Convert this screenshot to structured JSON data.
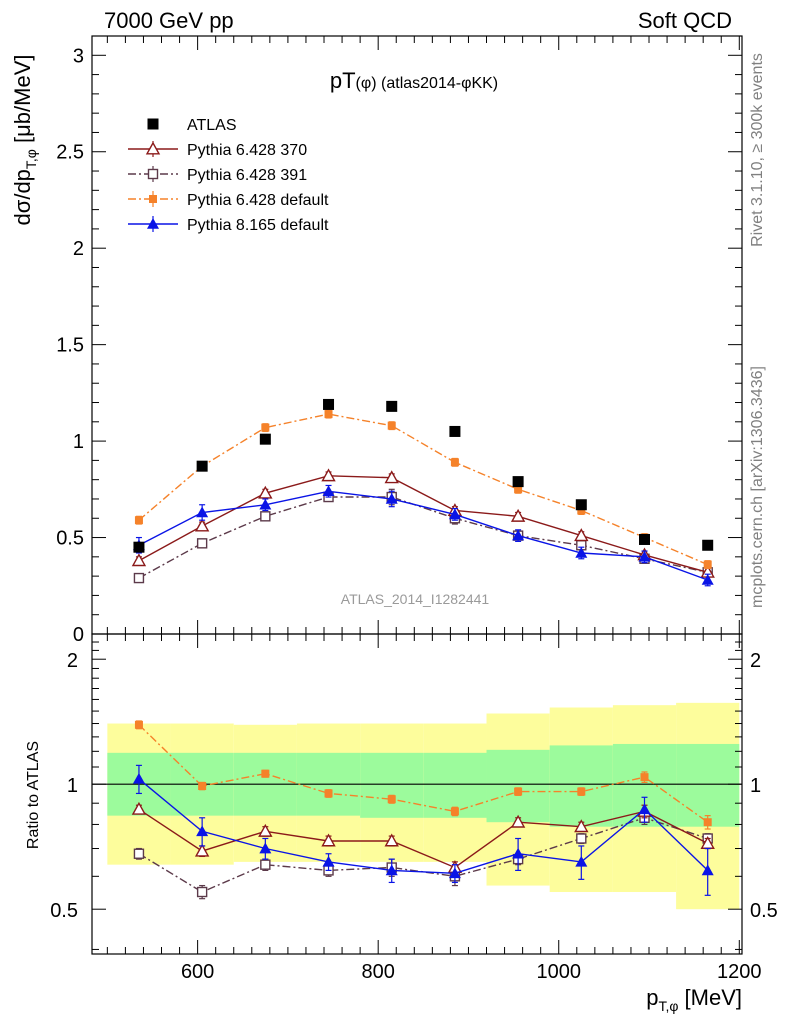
{
  "header": {
    "left": "7000 GeV pp",
    "right": "Soft QCD"
  },
  "side_labels": {
    "rivet": "Rivet 3.1.10, ≥ 300k events",
    "mcplots": "mcplots.cern.ch [arXiv:1306.3436]"
  },
  "watermark": "ATLAS_2014_I1282441",
  "colors": {
    "atlas": "#000000",
    "p370": "#8b1a1a",
    "p391": "#5c3a4a",
    "p6def": "#f5822a",
    "p8def": "#0a14e6",
    "band_yellow": "#fdfd9c",
    "band_green": "#9cfb9c"
  },
  "chart_data": [
    {
      "type": "line",
      "panel": "main",
      "title": "pT(φ) (atlas2014-φKK)",
      "title_main": "pT",
      "title_sub": "(φ) (atlas2014-φKK)",
      "ylabel": "dσ/dp_{T,φ} [μb/MeV]",
      "ylabel_main": "dσ/dp",
      "ylabel_sub": "T,φ",
      "ylabel_unit": " [μb/MeV]",
      "xlim": [
        483,
        1203
      ],
      "ylim": [
        0,
        3.1
      ],
      "yticks": [
        0,
        0.5,
        1,
        1.5,
        2,
        2.5,
        3
      ],
      "ytick_labels": [
        "0",
        "0.5",
        "1",
        "1.5",
        "2",
        "2.5",
        "3"
      ],
      "x": [
        535,
        605,
        675,
        745,
        815,
        885,
        955,
        1025,
        1095,
        1165
      ],
      "series": [
        {
          "name": "ATLAS",
          "key": "atlas",
          "marker": "square-filled",
          "line": "none",
          "values": [
            0.45,
            0.87,
            1.01,
            1.19,
            1.18,
            1.05,
            0.79,
            0.67,
            0.49,
            0.46
          ]
        },
        {
          "name": "Pythia 6.428 370",
          "key": "p370",
          "marker": "triangle-open",
          "line": "solid",
          "values": [
            0.38,
            0.56,
            0.73,
            0.82,
            0.81,
            0.64,
            0.61,
            0.51,
            0.41,
            0.32
          ],
          "errors": [
            0.02,
            0.02,
            0.02,
            0.02,
            0.02,
            0.02,
            0.02,
            0.02,
            0.02,
            0.02
          ]
        },
        {
          "name": "Pythia 6.428 391",
          "key": "p391",
          "marker": "square-open",
          "line": "dashdot",
          "values": [
            0.29,
            0.47,
            0.61,
            0.71,
            0.71,
            0.6,
            0.51,
            0.46,
            0.39,
            0.32
          ],
          "errors": [
            0.02,
            0.02,
            0.02,
            0.02,
            0.04,
            0.03,
            0.02,
            0.02,
            0.02,
            0.02
          ]
        },
        {
          "name": "Pythia 6.428 default",
          "key": "p6def",
          "marker": "square-filled-small",
          "line": "dashdot",
          "values": [
            0.59,
            0.87,
            1.07,
            1.14,
            1.08,
            0.89,
            0.75,
            0.64,
            0.5,
            0.36
          ],
          "errors": [
            0.02,
            0.02,
            0.02,
            0.02,
            0.02,
            0.02,
            0.02,
            0.02,
            0.02,
            0.02
          ]
        },
        {
          "name": "Pythia 8.165 default",
          "key": "p8def",
          "marker": "triangle-filled",
          "line": "solid",
          "values": [
            0.46,
            0.63,
            0.67,
            0.74,
            0.7,
            0.62,
            0.51,
            0.42,
            0.4,
            0.28
          ],
          "errors": [
            0.04,
            0.04,
            0.03,
            0.03,
            0.04,
            0.03,
            0.03,
            0.03,
            0.03,
            0.03
          ]
        }
      ]
    },
    {
      "type": "line",
      "panel": "ratio",
      "ylabel": "Ratio to ATLAS",
      "xlabel": "p_{T,φ} [MeV]",
      "xlabel_main": "p",
      "xlabel_sub": "T,φ",
      "xlabel_unit": " [MeV]",
      "xlim": [
        483,
        1203
      ],
      "ylim": [
        0.39,
        2.3
      ],
      "log_y": true,
      "yticks": [
        0.5,
        1,
        2
      ],
      "ytick_labels": [
        "0.5",
        "1",
        "2"
      ],
      "xticks": [
        600,
        800,
        1000,
        1200
      ],
      "xtick_labels": [
        "600",
        "800",
        "1000",
        "1200"
      ],
      "x": [
        535,
        605,
        675,
        745,
        815,
        885,
        955,
        1025,
        1095,
        1165
      ],
      "bin_edges": [
        500,
        570,
        640,
        710,
        780,
        850,
        920,
        990,
        1060,
        1130,
        1200
      ],
      "band_yellow": {
        "low": [
          0.64,
          0.64,
          0.65,
          0.65,
          0.65,
          0.65,
          0.57,
          0.55,
          0.55,
          0.5
        ],
        "high": [
          1.4,
          1.4,
          1.39,
          1.4,
          1.4,
          1.4,
          1.48,
          1.53,
          1.55,
          1.57
        ]
      },
      "band_green": {
        "low": [
          0.84,
          0.84,
          0.84,
          0.84,
          0.83,
          0.83,
          0.81,
          0.79,
          0.79,
          0.79
        ],
        "high": [
          1.19,
          1.19,
          1.19,
          1.19,
          1.19,
          1.19,
          1.21,
          1.24,
          1.25,
          1.25
        ]
      },
      "series": [
        {
          "name": "Pythia 6.428 370",
          "key": "p370",
          "marker": "triangle-open",
          "line": "solid",
          "values": [
            0.87,
            0.69,
            0.77,
            0.73,
            0.73,
            0.63,
            0.81,
            0.79,
            0.86,
            0.72
          ],
          "errors": [
            0.02,
            0.02,
            0.02,
            0.02,
            0.02,
            0.02,
            0.02,
            0.02,
            0.03,
            0.02
          ]
        },
        {
          "name": "Pythia 6.428 391",
          "key": "p391",
          "marker": "square-open",
          "line": "dashdot",
          "values": [
            0.68,
            0.55,
            0.64,
            0.62,
            0.63,
            0.6,
            0.66,
            0.74,
            0.83,
            0.74
          ],
          "errors": [
            0.02,
            0.02,
            0.02,
            0.02,
            0.03,
            0.03,
            0.02,
            0.02,
            0.03,
            0.02
          ]
        },
        {
          "name": "Pythia 6.428 default",
          "key": "p6def",
          "marker": "square-filled-small",
          "line": "dashdot",
          "values": [
            1.39,
            0.99,
            1.06,
            0.95,
            0.92,
            0.86,
            0.96,
            0.96,
            1.04,
            0.81
          ],
          "errors": [
            0.03,
            0.02,
            0.02,
            0.02,
            0.02,
            0.02,
            0.02,
            0.02,
            0.03,
            0.03
          ]
        },
        {
          "name": "Pythia 8.165 default",
          "key": "p8def",
          "marker": "triangle-filled",
          "line": "solid",
          "values": [
            1.03,
            0.77,
            0.7,
            0.65,
            0.62,
            0.61,
            0.68,
            0.65,
            0.87,
            0.62
          ],
          "errors": [
            0.08,
            0.06,
            0.04,
            0.03,
            0.04,
            0.03,
            0.06,
            0.06,
            0.06,
            0.08
          ]
        }
      ]
    }
  ]
}
